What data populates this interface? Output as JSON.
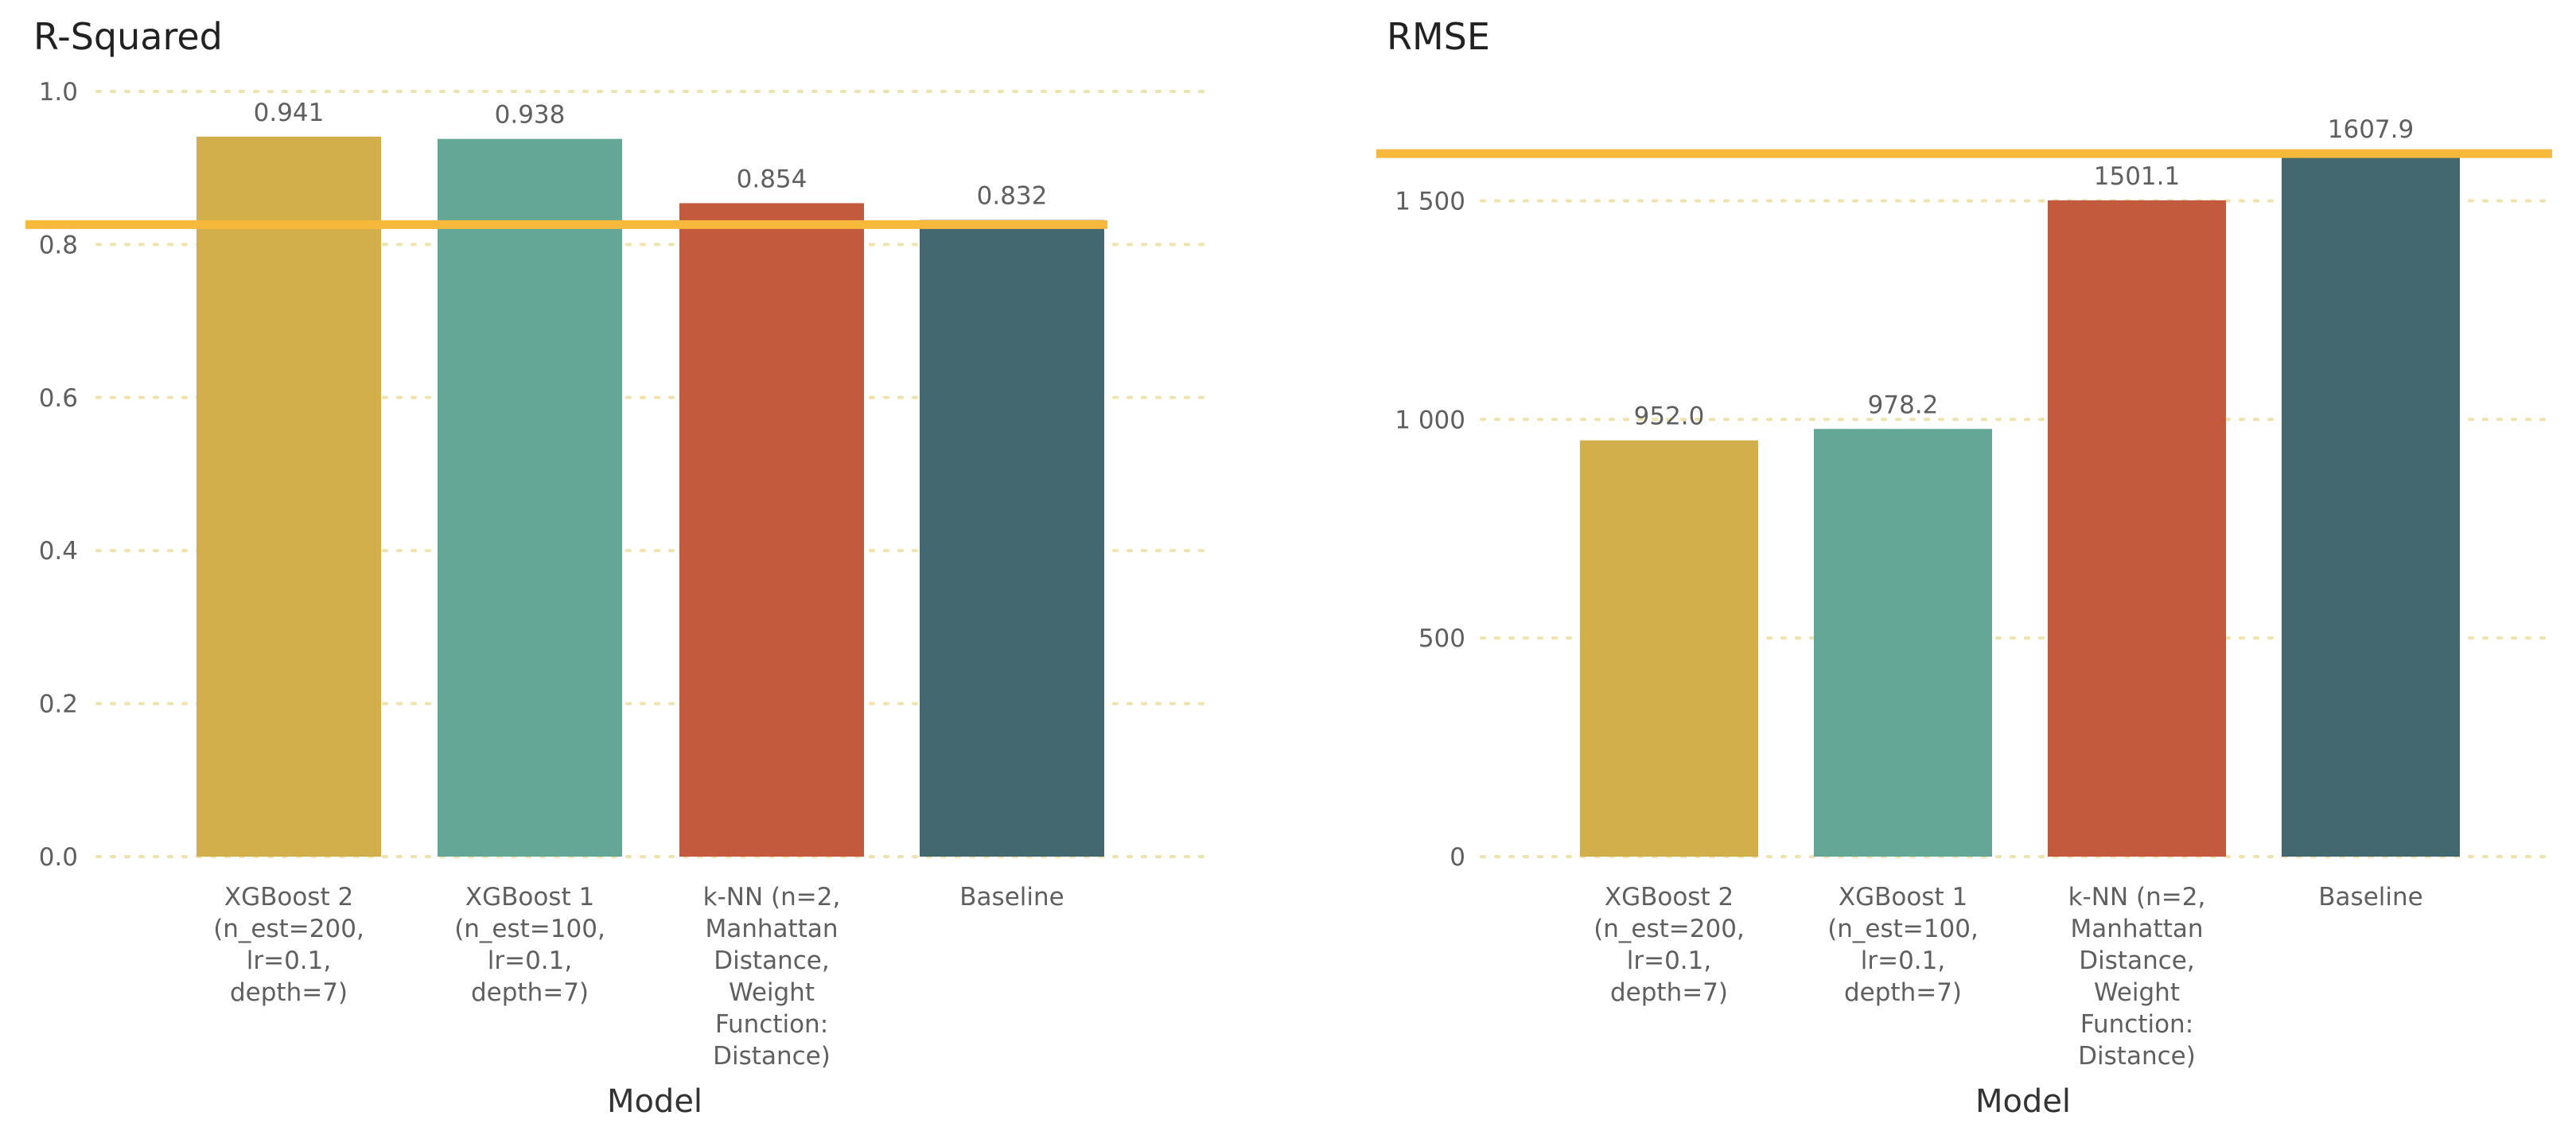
{
  "chart_data": [
    {
      "type": "bar",
      "title": "R-Squared",
      "xlabel": "Model",
      "ylabel": "",
      "ylim": [
        0,
        1.0
      ],
      "yticks": [
        "0.0",
        "0.2",
        "0.4",
        "0.6",
        "0.8",
        "1.0"
      ],
      "ytick_values": [
        0,
        0.2,
        0.4,
        0.6,
        0.8,
        1.0
      ],
      "categories": [
        [
          "XGBoost 2",
          "(n_est=200,",
          "lr=0.1,",
          "depth=7)"
        ],
        [
          "XGBoost 1",
          "(n_est=100,",
          "lr=0.1,",
          "depth=7)"
        ],
        [
          "k-NN (n=2,",
          "Manhattan",
          "Distance,",
          "Weight",
          "Function:",
          "Distance)"
        ],
        [
          "Baseline"
        ]
      ],
      "values": [
        0.941,
        0.938,
        0.854,
        0.832
      ],
      "value_labels": [
        "0.941",
        "0.938",
        "0.854",
        "0.832"
      ],
      "reference_line": 0.826,
      "grid": true
    },
    {
      "type": "bar",
      "title": "RMSE",
      "xlabel": "Model",
      "ylabel": "",
      "ylim": [
        0,
        1650
      ],
      "yticks": [
        "0",
        "500",
        "1 000",
        "1 500"
      ],
      "ytick_values": [
        0,
        500,
        1000,
        1500
      ],
      "categories": [
        [
          "XGBoost 2",
          "(n_est=200,",
          "lr=0.1,",
          "depth=7)"
        ],
        [
          "XGBoost 1",
          "(n_est=100,",
          "lr=0.1,",
          "depth=7)"
        ],
        [
          "k-NN (n=2,",
          "Manhattan",
          "Distance,",
          "Weight",
          "Function:",
          "Distance)"
        ],
        [
          "Baseline"
        ]
      ],
      "values": [
        952.0,
        978.2,
        1501.1,
        1607.9
      ],
      "value_labels": [
        "952.0",
        "978.2",
        "1501.1",
        "1607.9"
      ],
      "reference_line": 1607.9,
      "grid": true
    }
  ],
  "colors": {
    "bars": [
      "#d2af4b",
      "#65a797",
      "#c35a3d",
      "#43686f"
    ],
    "reference_line": "#f6b93b",
    "grid": "#efe3ad"
  }
}
